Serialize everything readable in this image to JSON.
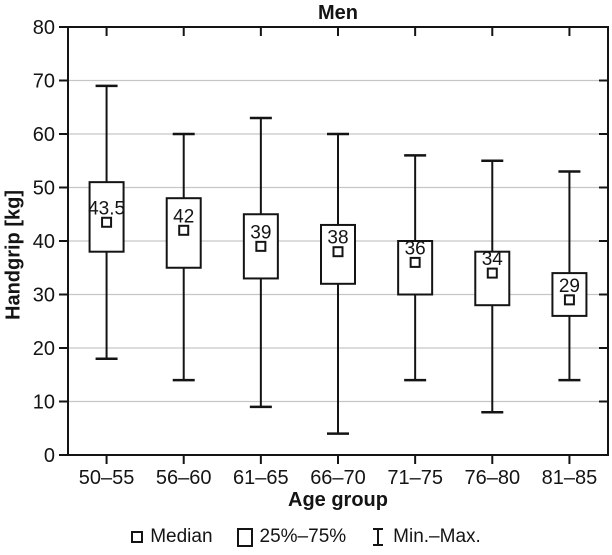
{
  "figure": {
    "legend": [
      {
        "icon": "median-square-icon",
        "label": "Median"
      },
      {
        "icon": "quartile-box-icon",
        "label": "25%–75%"
      },
      {
        "icon": "min-max-whisker-icon",
        "label": "Min.–Max."
      }
    ]
  },
  "chart_data": {
    "type": "boxplot",
    "title": "Men",
    "xlabel": "Age group",
    "ylabel": "Handgrip [kg]",
    "ylim": [
      0,
      80
    ],
    "ytick_step": 10,
    "ytick_labels": [
      "0",
      "10",
      "20",
      "30",
      "40",
      "50",
      "60",
      "70",
      "80"
    ],
    "grid": "horizontal",
    "legend_position": "bottom",
    "categories": [
      "50–55",
      "56–60",
      "61–65",
      "66–70",
      "71–75",
      "76–80",
      "81–85"
    ],
    "series": [
      {
        "category": "50–55",
        "min": 18,
        "q1": 38,
        "median": 43.5,
        "q3": 51,
        "max": 69,
        "median_label": "43.5"
      },
      {
        "category": "56–60",
        "min": 14,
        "q1": 35,
        "median": 42,
        "q3": 48,
        "max": 60,
        "median_label": "42"
      },
      {
        "category": "61–65",
        "min": 9,
        "q1": 33,
        "median": 39,
        "q3": 45,
        "max": 63,
        "median_label": "39"
      },
      {
        "category": "66–70",
        "min": 4,
        "q1": 32,
        "median": 38,
        "q3": 43,
        "max": 60,
        "median_label": "38"
      },
      {
        "category": "71–75",
        "min": 14,
        "q1": 30,
        "median": 36,
        "q3": 40,
        "max": 56,
        "median_label": "36"
      },
      {
        "category": "76–80",
        "min": 8,
        "q1": 28,
        "median": 34,
        "q3": 38,
        "max": 55,
        "median_label": "34"
      },
      {
        "category": "81–85",
        "min": 14,
        "q1": 26,
        "median": 29,
        "q3": 34,
        "max": 53,
        "median_label": "29"
      }
    ],
    "colors": {
      "stroke": "#141414",
      "gridline": "#c6c6c6",
      "background": "#ffffff",
      "box_fill": "#ffffff"
    }
  }
}
